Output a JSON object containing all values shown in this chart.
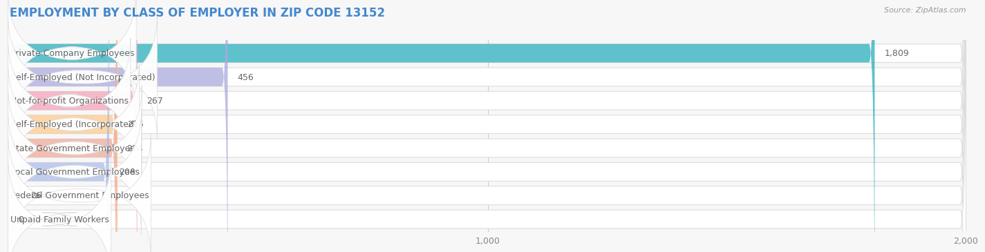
{
  "title": "EMPLOYMENT BY CLASS OF EMPLOYER IN ZIP CODE 13152",
  "source": "Source: ZipAtlas.com",
  "categories": [
    "Private Company Employees",
    "Self-Employed (Not Incorporated)",
    "Not-for-profit Organizations",
    "Self-Employed (Incorporated)",
    "State Government Employees",
    "Local Government Employees",
    "Federal Government Employees",
    "Unpaid Family Workers"
  ],
  "values": [
    1809,
    456,
    267,
    226,
    224,
    208,
    26,
    0
  ],
  "bar_colors": [
    "#2AACBA",
    "#AAAADD",
    "#F4A0B8",
    "#FAC98A",
    "#F0A898",
    "#AABCE8",
    "#C8AADC",
    "#72CCCC"
  ],
  "label_color": "#666666",
  "title_color": "#4488CC",
  "source_color": "#999999",
  "background_color": "#F7F7F7",
  "xlim_max": 2000,
  "xticks": [
    0,
    1000,
    2000
  ],
  "title_fontsize": 12,
  "label_fontsize": 9,
  "value_fontsize": 9
}
